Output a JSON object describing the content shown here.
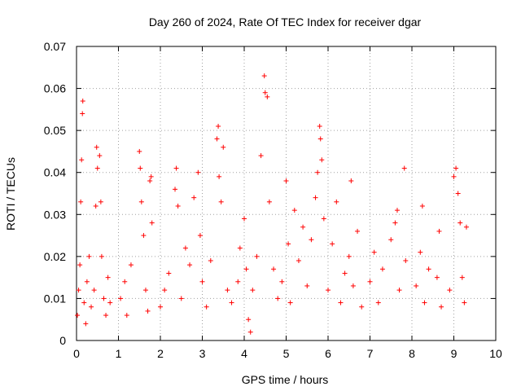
{
  "chart_data": {
    "type": "scatter",
    "title": "Day 260 of 2024, Rate Of TEC Index for receiver dgar",
    "xlabel": "GPS time / hours",
    "ylabel": "ROTI / TECUs",
    "xlim": [
      0,
      10
    ],
    "ylim": [
      0,
      0.07
    ],
    "xticks": [
      "0",
      "1",
      "2",
      "3",
      "4",
      "5",
      "6",
      "7",
      "8",
      "9",
      "10"
    ],
    "yticks": [
      "0",
      "0.01",
      "0.02",
      "0.03",
      "0.04",
      "0.05",
      "0.06",
      "0.07"
    ],
    "grid": true,
    "marker": "+",
    "color": "#ff0000",
    "series": [
      {
        "name": "ROTI",
        "points": [
          [
            0.02,
            0.006
          ],
          [
            0.05,
            0.012
          ],
          [
            0.08,
            0.018
          ],
          [
            0.1,
            0.033
          ],
          [
            0.12,
            0.043
          ],
          [
            0.15,
            0.057
          ],
          [
            0.14,
            0.054
          ],
          [
            0.18,
            0.009
          ],
          [
            0.22,
            0.004
          ],
          [
            0.25,
            0.014
          ],
          [
            0.3,
            0.02
          ],
          [
            0.35,
            0.008
          ],
          [
            0.42,
            0.012
          ],
          [
            0.46,
            0.032
          ],
          [
            0.48,
            0.046
          ],
          [
            0.5,
            0.041
          ],
          [
            0.55,
            0.044
          ],
          [
            0.58,
            0.033
          ],
          [
            0.6,
            0.02
          ],
          [
            0.65,
            0.01
          ],
          [
            0.7,
            0.006
          ],
          [
            0.75,
            0.015
          ],
          [
            0.8,
            0.009
          ],
          [
            1.05,
            0.01
          ],
          [
            1.15,
            0.014
          ],
          [
            1.2,
            0.006
          ],
          [
            1.3,
            0.018
          ],
          [
            1.5,
            0.045
          ],
          [
            1.52,
            0.041
          ],
          [
            1.55,
            0.033
          ],
          [
            1.6,
            0.025
          ],
          [
            1.65,
            0.012
          ],
          [
            1.7,
            0.007
          ],
          [
            1.75,
            0.038
          ],
          [
            1.78,
            0.039
          ],
          [
            1.8,
            0.028
          ],
          [
            2.0,
            0.008
          ],
          [
            2.1,
            0.012
          ],
          [
            2.2,
            0.016
          ],
          [
            2.35,
            0.036
          ],
          [
            2.38,
            0.041
          ],
          [
            2.42,
            0.032
          ],
          [
            2.5,
            0.01
          ],
          [
            2.6,
            0.022
          ],
          [
            2.7,
            0.018
          ],
          [
            2.8,
            0.034
          ],
          [
            2.9,
            0.04
          ],
          [
            2.95,
            0.025
          ],
          [
            3.0,
            0.014
          ],
          [
            3.1,
            0.008
          ],
          [
            3.2,
            0.019
          ],
          [
            3.35,
            0.048
          ],
          [
            3.38,
            0.051
          ],
          [
            3.4,
            0.039
          ],
          [
            3.45,
            0.033
          ],
          [
            3.5,
            0.046
          ],
          [
            3.6,
            0.012
          ],
          [
            3.7,
            0.009
          ],
          [
            3.85,
            0.014
          ],
          [
            3.9,
            0.022
          ],
          [
            4.0,
            0.029
          ],
          [
            4.05,
            0.017
          ],
          [
            4.1,
            0.005
          ],
          [
            4.15,
            0.002
          ],
          [
            4.2,
            0.012
          ],
          [
            4.3,
            0.02
          ],
          [
            4.4,
            0.044
          ],
          [
            4.48,
            0.063
          ],
          [
            4.5,
            0.059
          ],
          [
            4.55,
            0.058
          ],
          [
            4.6,
            0.033
          ],
          [
            4.7,
            0.017
          ],
          [
            4.8,
            0.01
          ],
          [
            4.9,
            0.014
          ],
          [
            5.0,
            0.038
          ],
          [
            5.05,
            0.023
          ],
          [
            5.1,
            0.009
          ],
          [
            5.2,
            0.031
          ],
          [
            5.3,
            0.019
          ],
          [
            5.4,
            0.027
          ],
          [
            5.5,
            0.013
          ],
          [
            5.6,
            0.024
          ],
          [
            5.7,
            0.034
          ],
          [
            5.75,
            0.04
          ],
          [
            5.8,
            0.051
          ],
          [
            5.82,
            0.048
          ],
          [
            5.85,
            0.043
          ],
          [
            5.9,
            0.029
          ],
          [
            6.0,
            0.012
          ],
          [
            6.1,
            0.023
          ],
          [
            6.2,
            0.033
          ],
          [
            6.3,
            0.009
          ],
          [
            6.4,
            0.016
          ],
          [
            6.5,
            0.02
          ],
          [
            6.55,
            0.038
          ],
          [
            6.6,
            0.013
          ],
          [
            6.7,
            0.026
          ],
          [
            6.8,
            0.008
          ],
          [
            7.0,
            0.014
          ],
          [
            7.1,
            0.021
          ],
          [
            7.2,
            0.009
          ],
          [
            7.3,
            0.017
          ],
          [
            7.5,
            0.024
          ],
          [
            7.6,
            0.028
          ],
          [
            7.65,
            0.031
          ],
          [
            7.7,
            0.012
          ],
          [
            7.82,
            0.041
          ],
          [
            7.85,
            0.019
          ],
          [
            8.1,
            0.013
          ],
          [
            8.2,
            0.021
          ],
          [
            8.25,
            0.032
          ],
          [
            8.3,
            0.009
          ],
          [
            8.4,
            0.017
          ],
          [
            8.6,
            0.015
          ],
          [
            8.65,
            0.026
          ],
          [
            8.7,
            0.008
          ],
          [
            8.9,
            0.012
          ],
          [
            9.0,
            0.039
          ],
          [
            9.05,
            0.041
          ],
          [
            9.1,
            0.035
          ],
          [
            9.15,
            0.028
          ],
          [
            9.2,
            0.015
          ],
          [
            9.25,
            0.009
          ],
          [
            9.3,
            0.027
          ]
        ]
      }
    ]
  }
}
